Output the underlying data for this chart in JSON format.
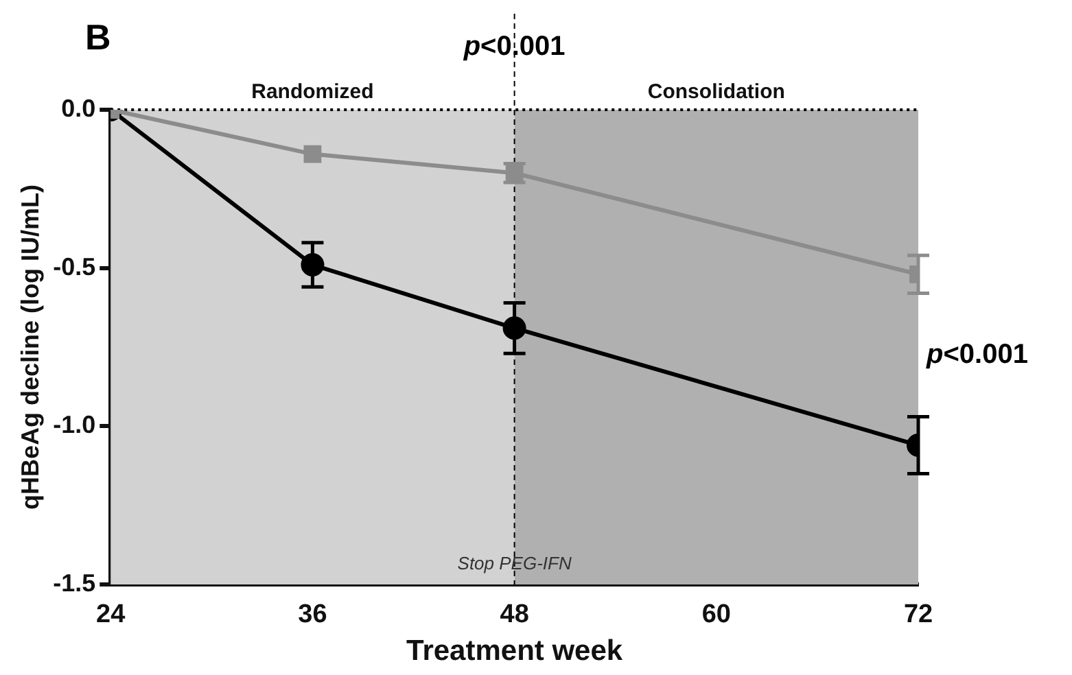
{
  "chart_data": {
    "type": "line",
    "xlabel": "Treatment week",
    "ylabel": "qHBeAg decline (log IU/mL)",
    "x": [
      24,
      36,
      48,
      72
    ],
    "xlim": [
      24,
      72
    ],
    "xticks": [
      24,
      36,
      48,
      60,
      72
    ],
    "ylim": [
      -1.5,
      0
    ],
    "yticks": [
      {
        "value": 0,
        "label": "0.0"
      },
      -0.5,
      {
        "value": -1,
        "label": "-1.0"
      },
      -1.5
    ],
    "grid": false,
    "legend": false,
    "series": [
      {
        "color": "#8c8c8c",
        "marker": "square",
        "values": [
          0,
          -0.14,
          -0.2,
          -0.52
        ],
        "errors": [
          null,
          null,
          0.03,
          0.06
        ]
      },
      {
        "color": "#000000",
        "marker": "circle",
        "values": [
          0,
          -0.49,
          -0.69,
          -1.06
        ],
        "errors": [
          null,
          0.07,
          0.08,
          0.09
        ]
      }
    ],
    "bands": [
      {
        "axis": "x",
        "from": 24,
        "to": 48,
        "label": "Randomized",
        "color": "#d2d2d2"
      },
      {
        "axis": "x",
        "from": 48,
        "to": 72,
        "label": "Consolidation",
        "color": "#b0b0b0"
      }
    ],
    "ref_lines": [
      {
        "axis": "x",
        "value": 48,
        "label": "Stop PEG-IFN",
        "line_style": "dashed",
        "color": "#000000"
      },
      {
        "axis": "y",
        "value": 0,
        "line_style": "dotted",
        "color": "#000000"
      }
    ],
    "annotations": [
      "B",
      {
        "text": "p<0.001",
        "x": 48
      },
      {
        "text": "p<0.001",
        "x": 72,
        "y": -0.8
      }
    ]
  }
}
